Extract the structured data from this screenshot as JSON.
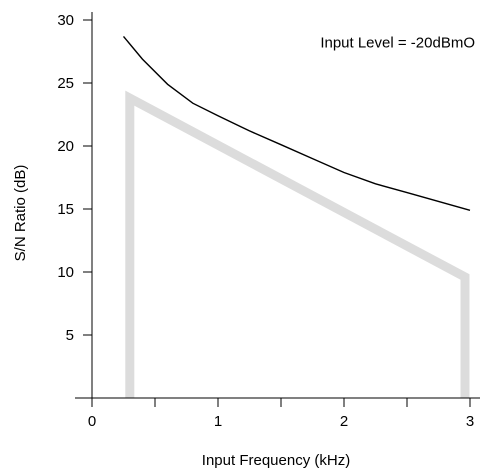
{
  "chart_data": {
    "type": "line",
    "title": "",
    "xlabel": "Input Frequency (kHz)",
    "ylabel": "S/N Ratio (dB)",
    "xlim": [
      0,
      3
    ],
    "ylim": [
      0,
      30
    ],
    "x_ticks": [
      0,
      1,
      2,
      3
    ],
    "x_tick_labels": [
      "0",
      "1",
      "2",
      "3"
    ],
    "x_minor_ticks": [
      0.5,
      1.5,
      2.5
    ],
    "y_ticks": [
      5,
      10,
      15,
      20,
      25,
      30
    ],
    "y_tick_labels": [
      "5",
      "10",
      "15",
      "20",
      "25",
      "30"
    ],
    "grid": false,
    "legend": "none",
    "annotations": [
      {
        "text": "Input Level = -20dBmO",
        "x": 3.0,
        "y": 28.2
      }
    ],
    "series": [
      {
        "style": "thin-black-line",
        "color": "#000000",
        "x": [
          0.25,
          0.4,
          0.6,
          0.8,
          1.0,
          1.25,
          1.5,
          1.75,
          2.0,
          2.25,
          2.5,
          2.75,
          3.0
        ],
        "y": [
          28.7,
          26.9,
          24.9,
          23.4,
          22.4,
          21.2,
          20.1,
          19.0,
          17.9,
          17.0,
          16.3,
          15.6,
          14.9
        ]
      },
      {
        "style": "thick-gray-line",
        "color": "#dcdcdc",
        "x": [
          0.3,
          0.3,
          2.96,
          2.96
        ],
        "y": [
          0,
          23.8,
          9.6,
          0
        ]
      }
    ]
  }
}
